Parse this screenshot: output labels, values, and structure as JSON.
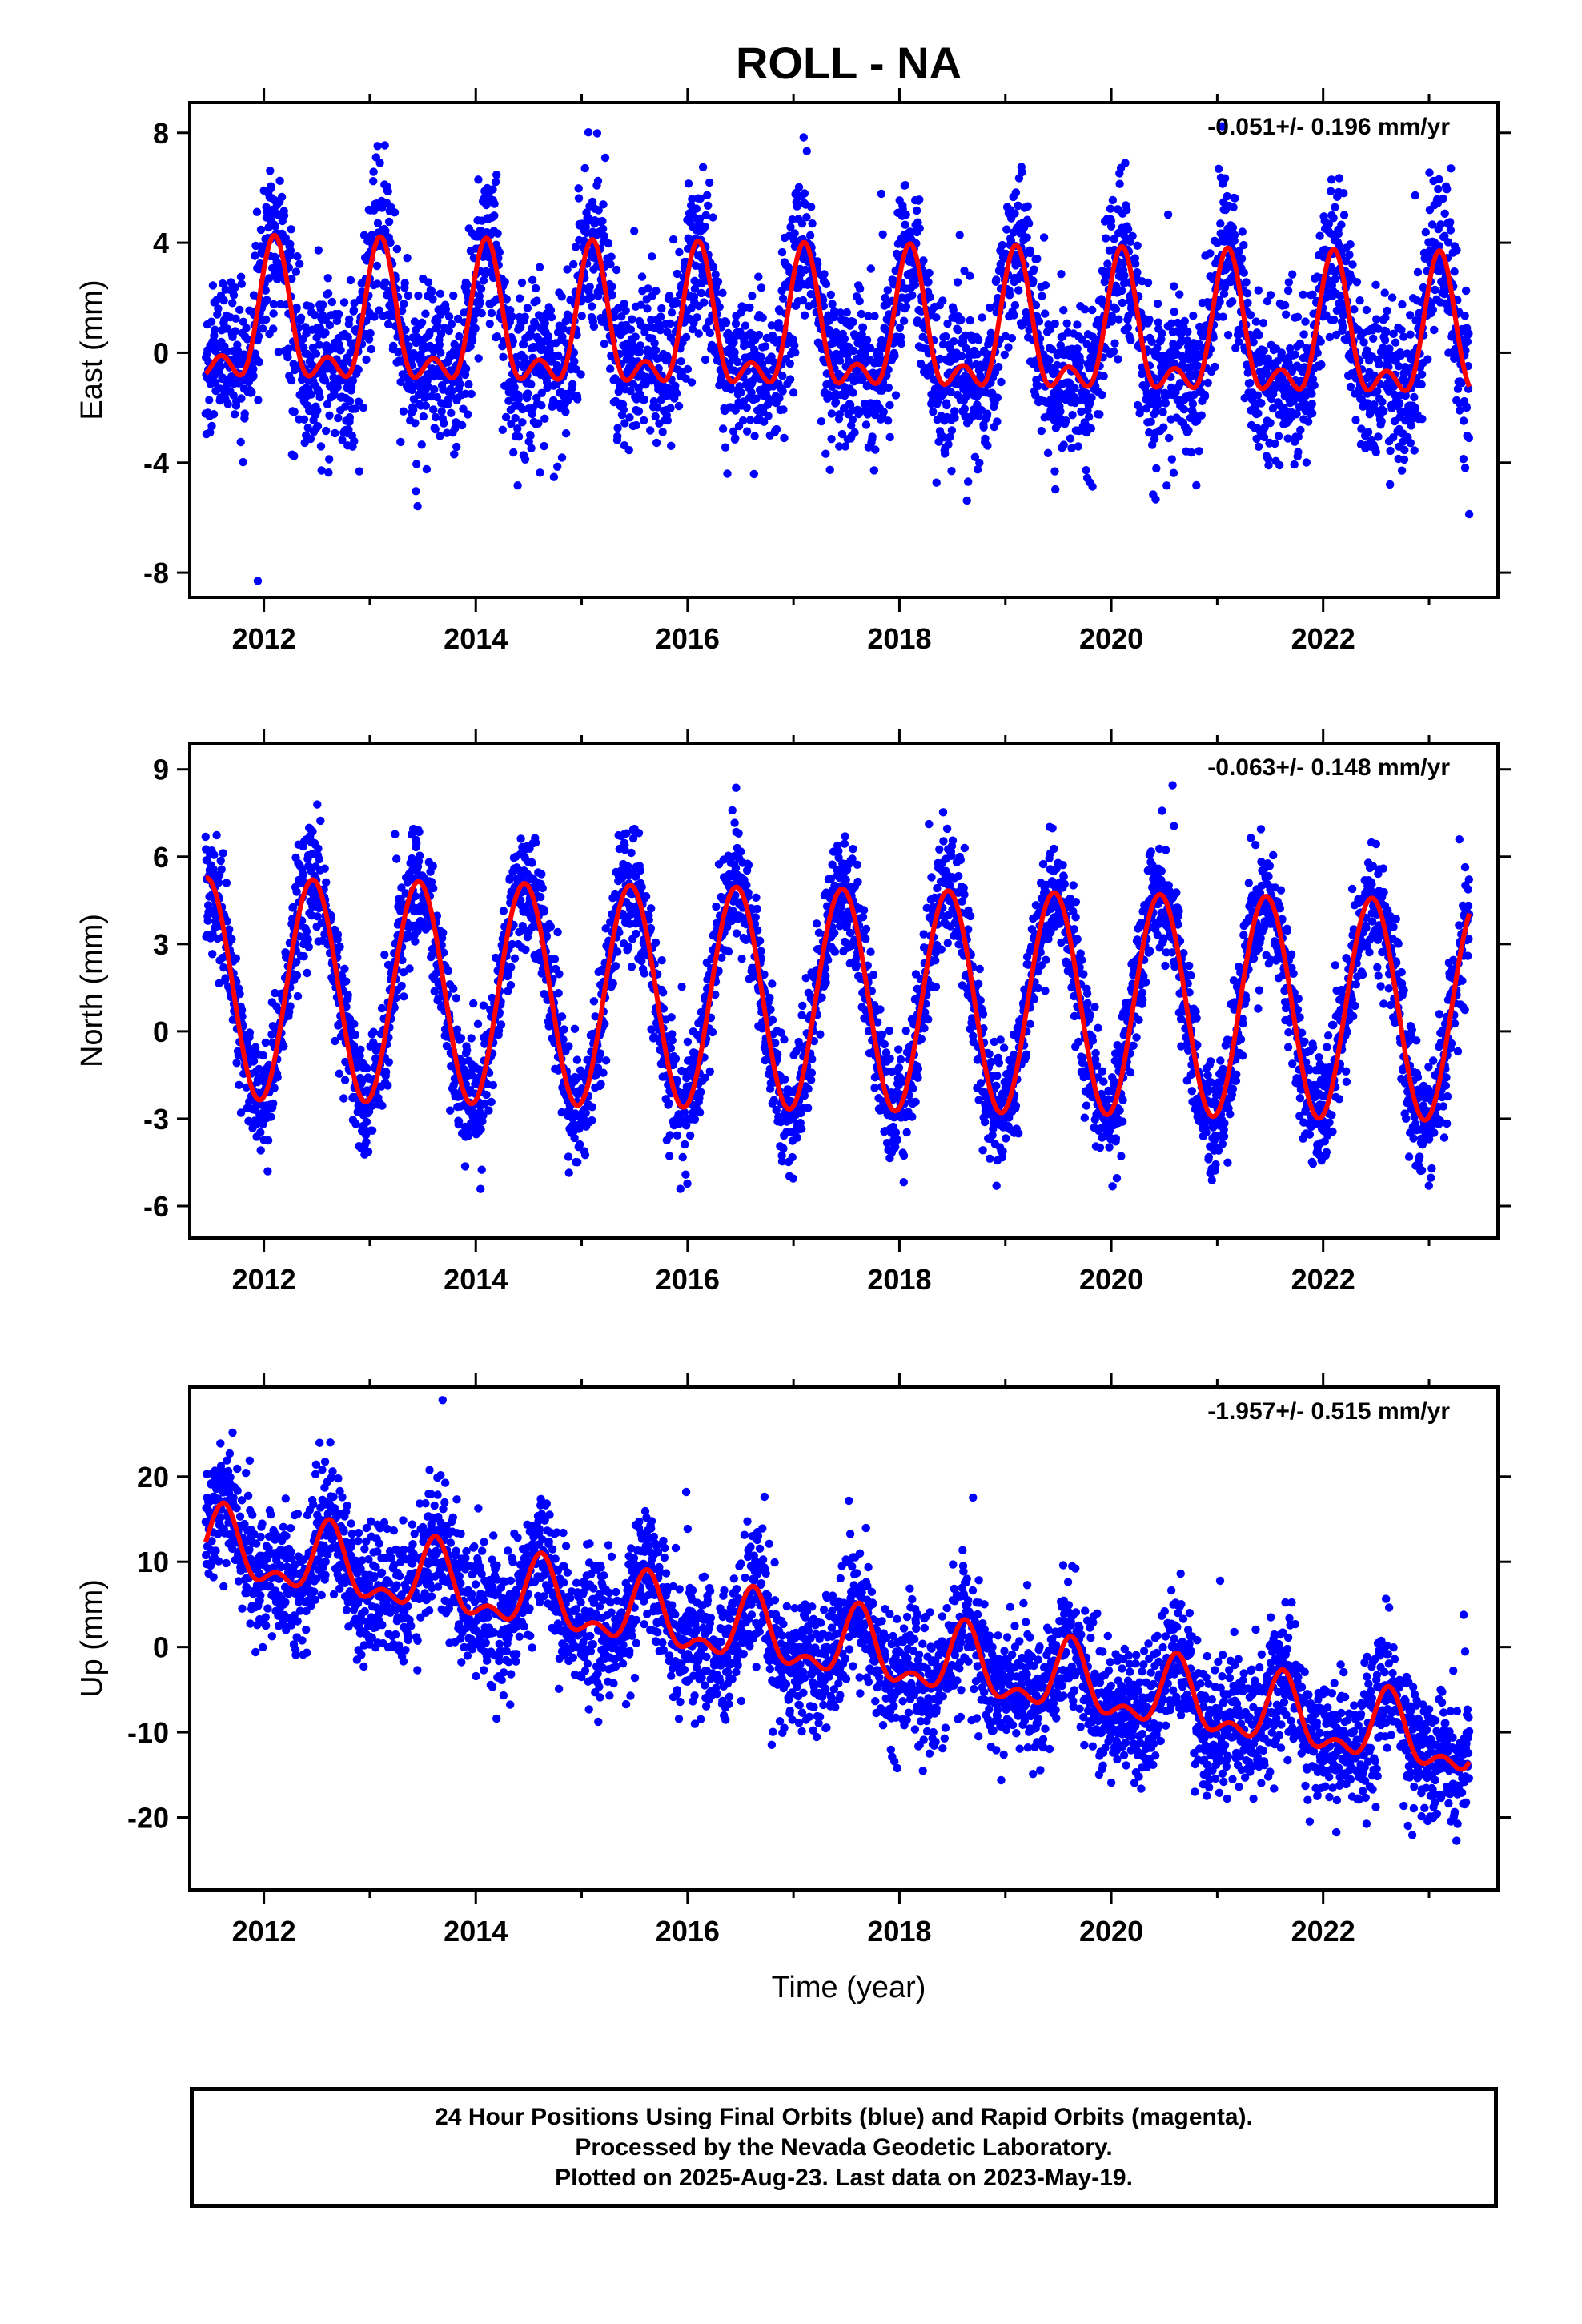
{
  "title": "ROLL - NA",
  "xlabel": "Time (year)",
  "colors": {
    "points": "#0000ff",
    "fit": "#ff0000",
    "frame": "#000000"
  },
  "footer": {
    "line1": "24 Hour Positions Using Final Orbits (blue) and Rapid Orbits (magenta).",
    "line2": "Processed by the Nevada Geodetic Laboratory.",
    "line3": "Plotted on 2025-Aug-23. Last data on 2023-May-19."
  },
  "chart_data": [
    {
      "type": "scatter",
      "ylabel": "East (mm)",
      "rate_label": "-0.051+/- 0.196 mm/yr",
      "xlim": [
        2011.3,
        2023.65
      ],
      "ylim": [
        -8.9,
        9.1
      ],
      "x_ticks": [
        2012,
        2014,
        2016,
        2018,
        2020,
        2022
      ],
      "y_ticks": [
        -8,
        -4,
        0,
        4,
        8
      ],
      "fit": {
        "mean": 0.6,
        "rate": -0.051,
        "annual_amp": 2.2,
        "annual_peak": 0.1,
        "semi_amp": 1.2,
        "semi_peak": 0.1
      },
      "scatter_sd": 1.4,
      "grid": false
    },
    {
      "type": "scatter",
      "ylabel": "North (mm)",
      "rate_label": "-0.063+/- 0.148 mm/yr",
      "xlim": [
        2011.3,
        2023.65
      ],
      "ylim": [
        -7.1,
        9.9
      ],
      "x_ticks": [
        2012,
        2014,
        2016,
        2018,
        2020,
        2022
      ],
      "y_ticks": [
        -6,
        -3,
        0,
        3,
        6,
        9
      ],
      "fit": {
        "mean": 1.1,
        "rate": -0.063,
        "annual_amp": 3.8,
        "annual_peak": 0.46,
        "semi_amp": 0.0,
        "semi_peak": 0.0
      },
      "scatter_sd": 1.0,
      "grid": false
    },
    {
      "type": "scatter",
      "ylabel": "Up (mm)",
      "rate_label": "-1.957+/- 0.515 mm/yr",
      "xlim": [
        2011.3,
        2023.65
      ],
      "ylim": [
        -28.5,
        30.5
      ],
      "x_ticks": [
        2012,
        2014,
        2016,
        2018,
        2020,
        2022
      ],
      "y_ticks": [
        -20,
        -10,
        0,
        10,
        20
      ],
      "fit": {
        "mean": 0,
        "rate": -1.957,
        "annual_amp": 3.6,
        "annual_peak": 0.62,
        "semi_amp": 2.0,
        "semi_peak": 0.12
      },
      "scatter_sd": 3.8,
      "grid": false
    }
  ]
}
